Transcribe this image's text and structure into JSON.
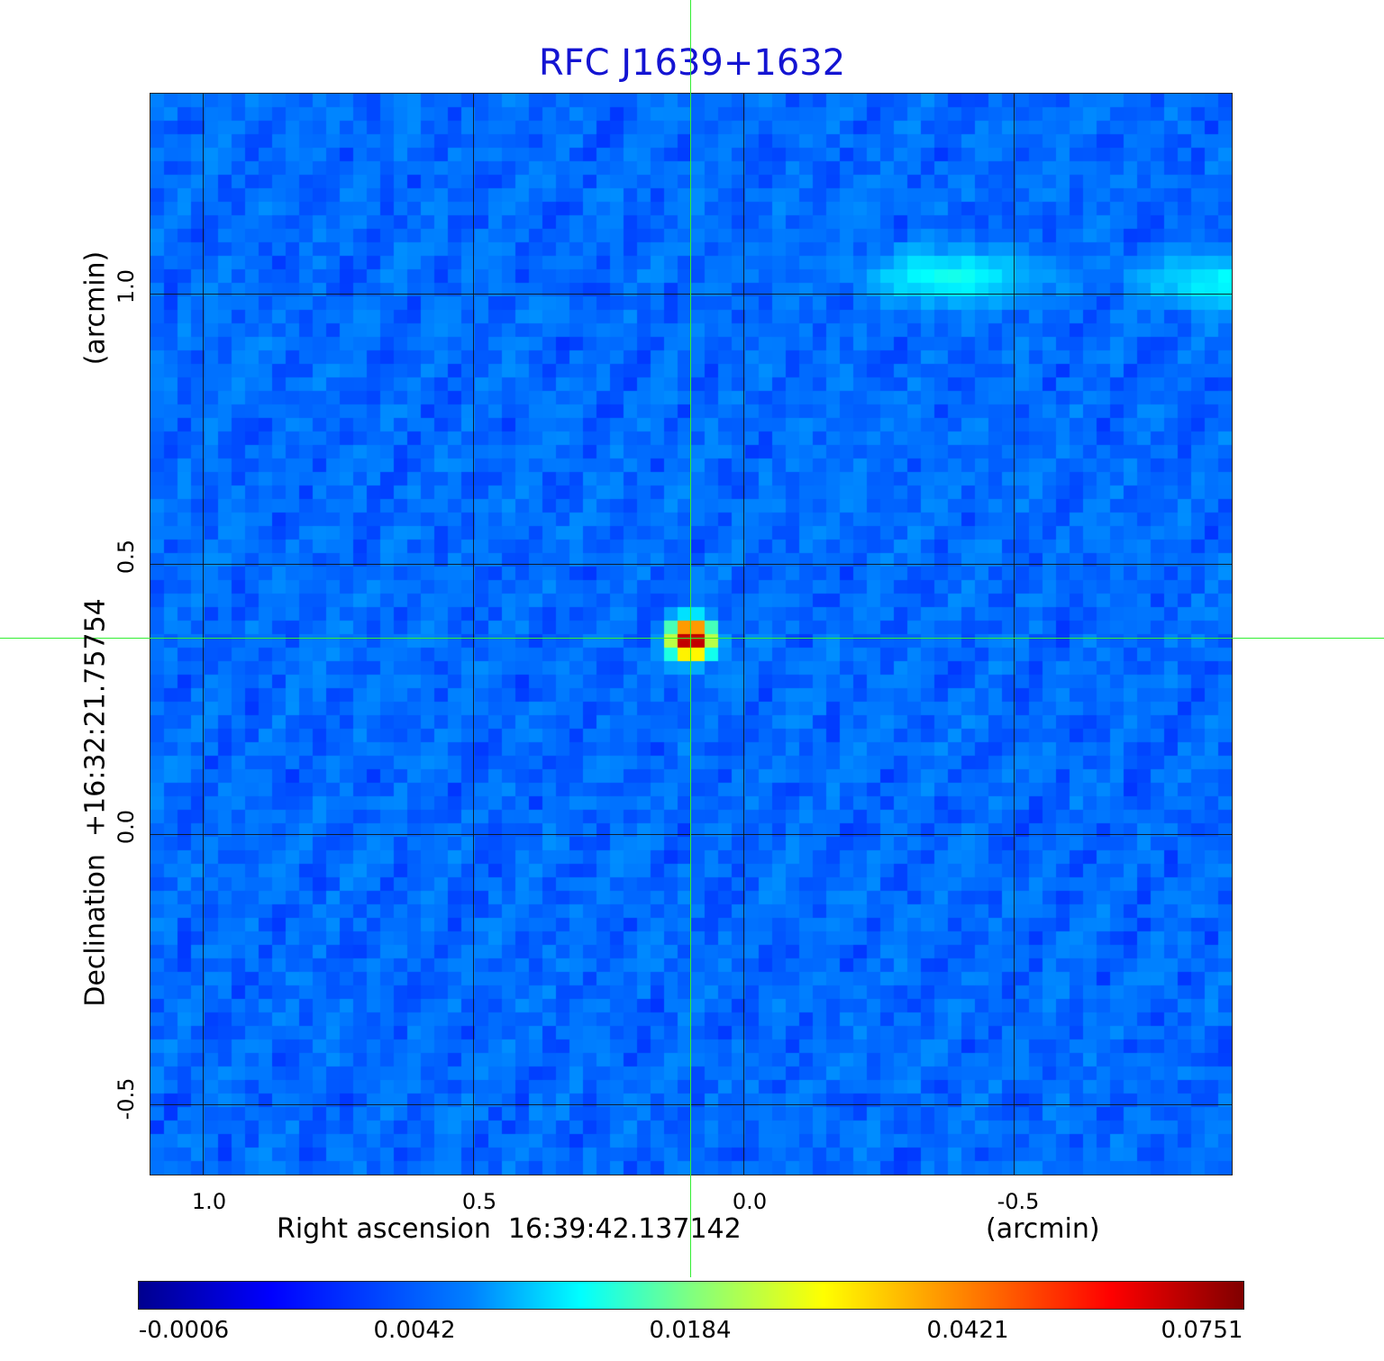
{
  "chart_data": {
    "type": "heatmap",
    "title": "RFC J1639+1632",
    "xlabel": "Right ascension  16:39:42.137142",
    "xunit": "(arcmin)",
    "ylabel": "Declination  +16:32:21.75754",
    "yunit": "(arcmin)",
    "x_ticks": [
      "1.0",
      "0.5",
      "0.0",
      "-0.5"
    ],
    "y_ticks": [
      "1.0",
      "0.5",
      "0.0",
      "-0.5"
    ],
    "xlim": [
      1.1,
      -0.9
    ],
    "ylim": [
      -0.63,
      1.37
    ],
    "grid": true,
    "colormap": "jet",
    "colorbar_ticks": [
      "-0.0006",
      "0.0042",
      "0.0184",
      "0.0421",
      "0.0751"
    ],
    "colorbar_range": [
      -0.0006,
      0.0751
    ],
    "peak": {
      "x": 0.1,
      "y": 0.36,
      "value": 0.0751
    },
    "secondary_emission": [
      {
        "x": -0.38,
        "y": 1.03,
        "value": 0.006
      },
      {
        "x": -0.88,
        "y": 1.02,
        "value": 0.005
      }
    ],
    "crosshair": {
      "x": 0.1,
      "y": 0.36,
      "color": "#33ee33"
    },
    "background_color": "#1e32f0",
    "title_color": "#1414d2"
  }
}
